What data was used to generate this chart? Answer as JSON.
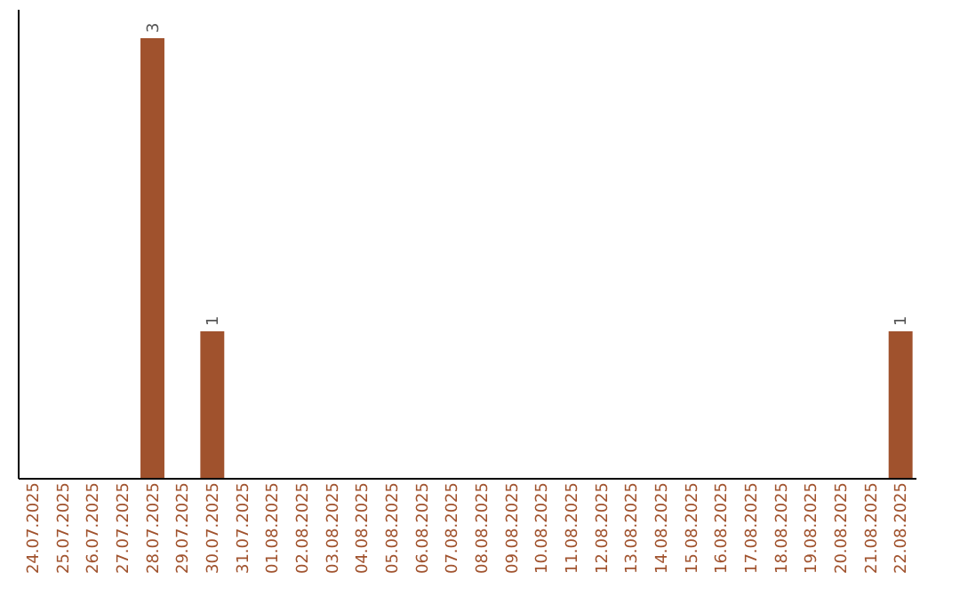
{
  "chart_data": {
    "type": "bar",
    "categories": [
      "24.07.2025",
      "25.07.2025",
      "26.07.2025",
      "27.07.2025",
      "28.07.2025",
      "29.07.2025",
      "30.07.2025",
      "31.07.2025",
      "01.08.2025",
      "02.08.2025",
      "03.08.2025",
      "04.08.2025",
      "05.08.2025",
      "06.08.2025",
      "07.08.2025",
      "08.08.2025",
      "09.08.2025",
      "10.08.2025",
      "11.08.2025",
      "12.08.2025",
      "13.08.2025",
      "14.08.2025",
      "15.08.2025",
      "16.08.2025",
      "17.08.2025",
      "18.08.2025",
      "19.08.2025",
      "20.08.2025",
      "21.08.2025",
      "22.08.2025"
    ],
    "values": [
      0,
      0,
      0,
      0,
      3,
      0,
      1,
      0,
      0,
      0,
      0,
      0,
      0,
      0,
      0,
      0,
      0,
      0,
      0,
      0,
      0,
      0,
      0,
      0,
      0,
      0,
      0,
      0,
      0,
      1
    ],
    "value_labels": [
      null,
      null,
      null,
      null,
      "3",
      null,
      "1",
      null,
      null,
      null,
      null,
      null,
      null,
      null,
      null,
      null,
      null,
      null,
      null,
      null,
      null,
      null,
      null,
      null,
      null,
      null,
      null,
      null,
      null,
      "1"
    ],
    "color": "#a0522d",
    "ylim": [
      0,
      3.2
    ],
    "tick_labels": "x",
    "grid": false
  }
}
